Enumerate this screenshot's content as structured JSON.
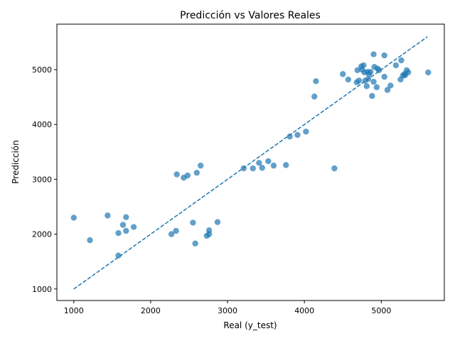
{
  "chart_data": {
    "type": "scatter",
    "title": "Predicción vs Valores Reales",
    "xlabel": "Real (y_test)",
    "ylabel": "Predicción",
    "xlim": [
      780,
      5820
    ],
    "ylim": [
      790,
      5830
    ],
    "xticks": [
      1000,
      2000,
      3000,
      4000,
      5000
    ],
    "yticks": [
      1000,
      2000,
      3000,
      4000,
      5000
    ],
    "grid": false,
    "legend": "none",
    "colors": {
      "points": "#1f77b4",
      "reference_line": "#1f77b4"
    },
    "reference_line": {
      "style": "dashed",
      "from": [
        1000,
        1000
      ],
      "to": [
        5600,
        5600
      ]
    },
    "points": [
      [
        1000,
        2300
      ],
      [
        1210,
        1890
      ],
      [
        1440,
        2340
      ],
      [
        1580,
        2020
      ],
      [
        1580,
        1610
      ],
      [
        1640,
        2170
      ],
      [
        1680,
        2060
      ],
      [
        1680,
        2310
      ],
      [
        1780,
        2130
      ],
      [
        2270,
        2000
      ],
      [
        2330,
        2060
      ],
      [
        2340,
        3090
      ],
      [
        2430,
        3030
      ],
      [
        2480,
        3070
      ],
      [
        2550,
        2210
      ],
      [
        2580,
        1830
      ],
      [
        2600,
        3120
      ],
      [
        2650,
        3250
      ],
      [
        2730,
        1970
      ],
      [
        2760,
        2070
      ],
      [
        2760,
        2000
      ],
      [
        2870,
        2220
      ],
      [
        3210,
        3200
      ],
      [
        3330,
        3200
      ],
      [
        3410,
        3300
      ],
      [
        3450,
        3210
      ],
      [
        3530,
        3330
      ],
      [
        3600,
        3250
      ],
      [
        3760,
        3260
      ],
      [
        3810,
        3780
      ],
      [
        3910,
        3810
      ],
      [
        4020,
        3870
      ],
      [
        4130,
        4510
      ],
      [
        4150,
        4790
      ],
      [
        4390,
        3200
      ],
      [
        4500,
        4920
      ],
      [
        4570,
        4820
      ],
      [
        4680,
        4770
      ],
      [
        4690,
        4990
      ],
      [
        4710,
        4800
      ],
      [
        4740,
        5060
      ],
      [
        4750,
        5000
      ],
      [
        4770,
        5080
      ],
      [
        4780,
        4950
      ],
      [
        4790,
        4800
      ],
      [
        4810,
        4700
      ],
      [
        4820,
        4960
      ],
      [
        4830,
        4830
      ],
      [
        4840,
        4920
      ],
      [
        4860,
        4960
      ],
      [
        4880,
        4520
      ],
      [
        4900,
        5280
      ],
      [
        4900,
        4780
      ],
      [
        4910,
        5050
      ],
      [
        4940,
        4680
      ],
      [
        4950,
        5020
      ],
      [
        4970,
        4990
      ],
      [
        5040,
        5260
      ],
      [
        5040,
        4870
      ],
      [
        5080,
        4630
      ],
      [
        5120,
        4710
      ],
      [
        5190,
        5080
      ],
      [
        5250,
        4820
      ],
      [
        5260,
        5170
      ],
      [
        5280,
        4890
      ],
      [
        5300,
        4920
      ],
      [
        5310,
        4900
      ],
      [
        5330,
        4990
      ],
      [
        5350,
        4950
      ],
      [
        5610,
        4950
      ]
    ]
  }
}
